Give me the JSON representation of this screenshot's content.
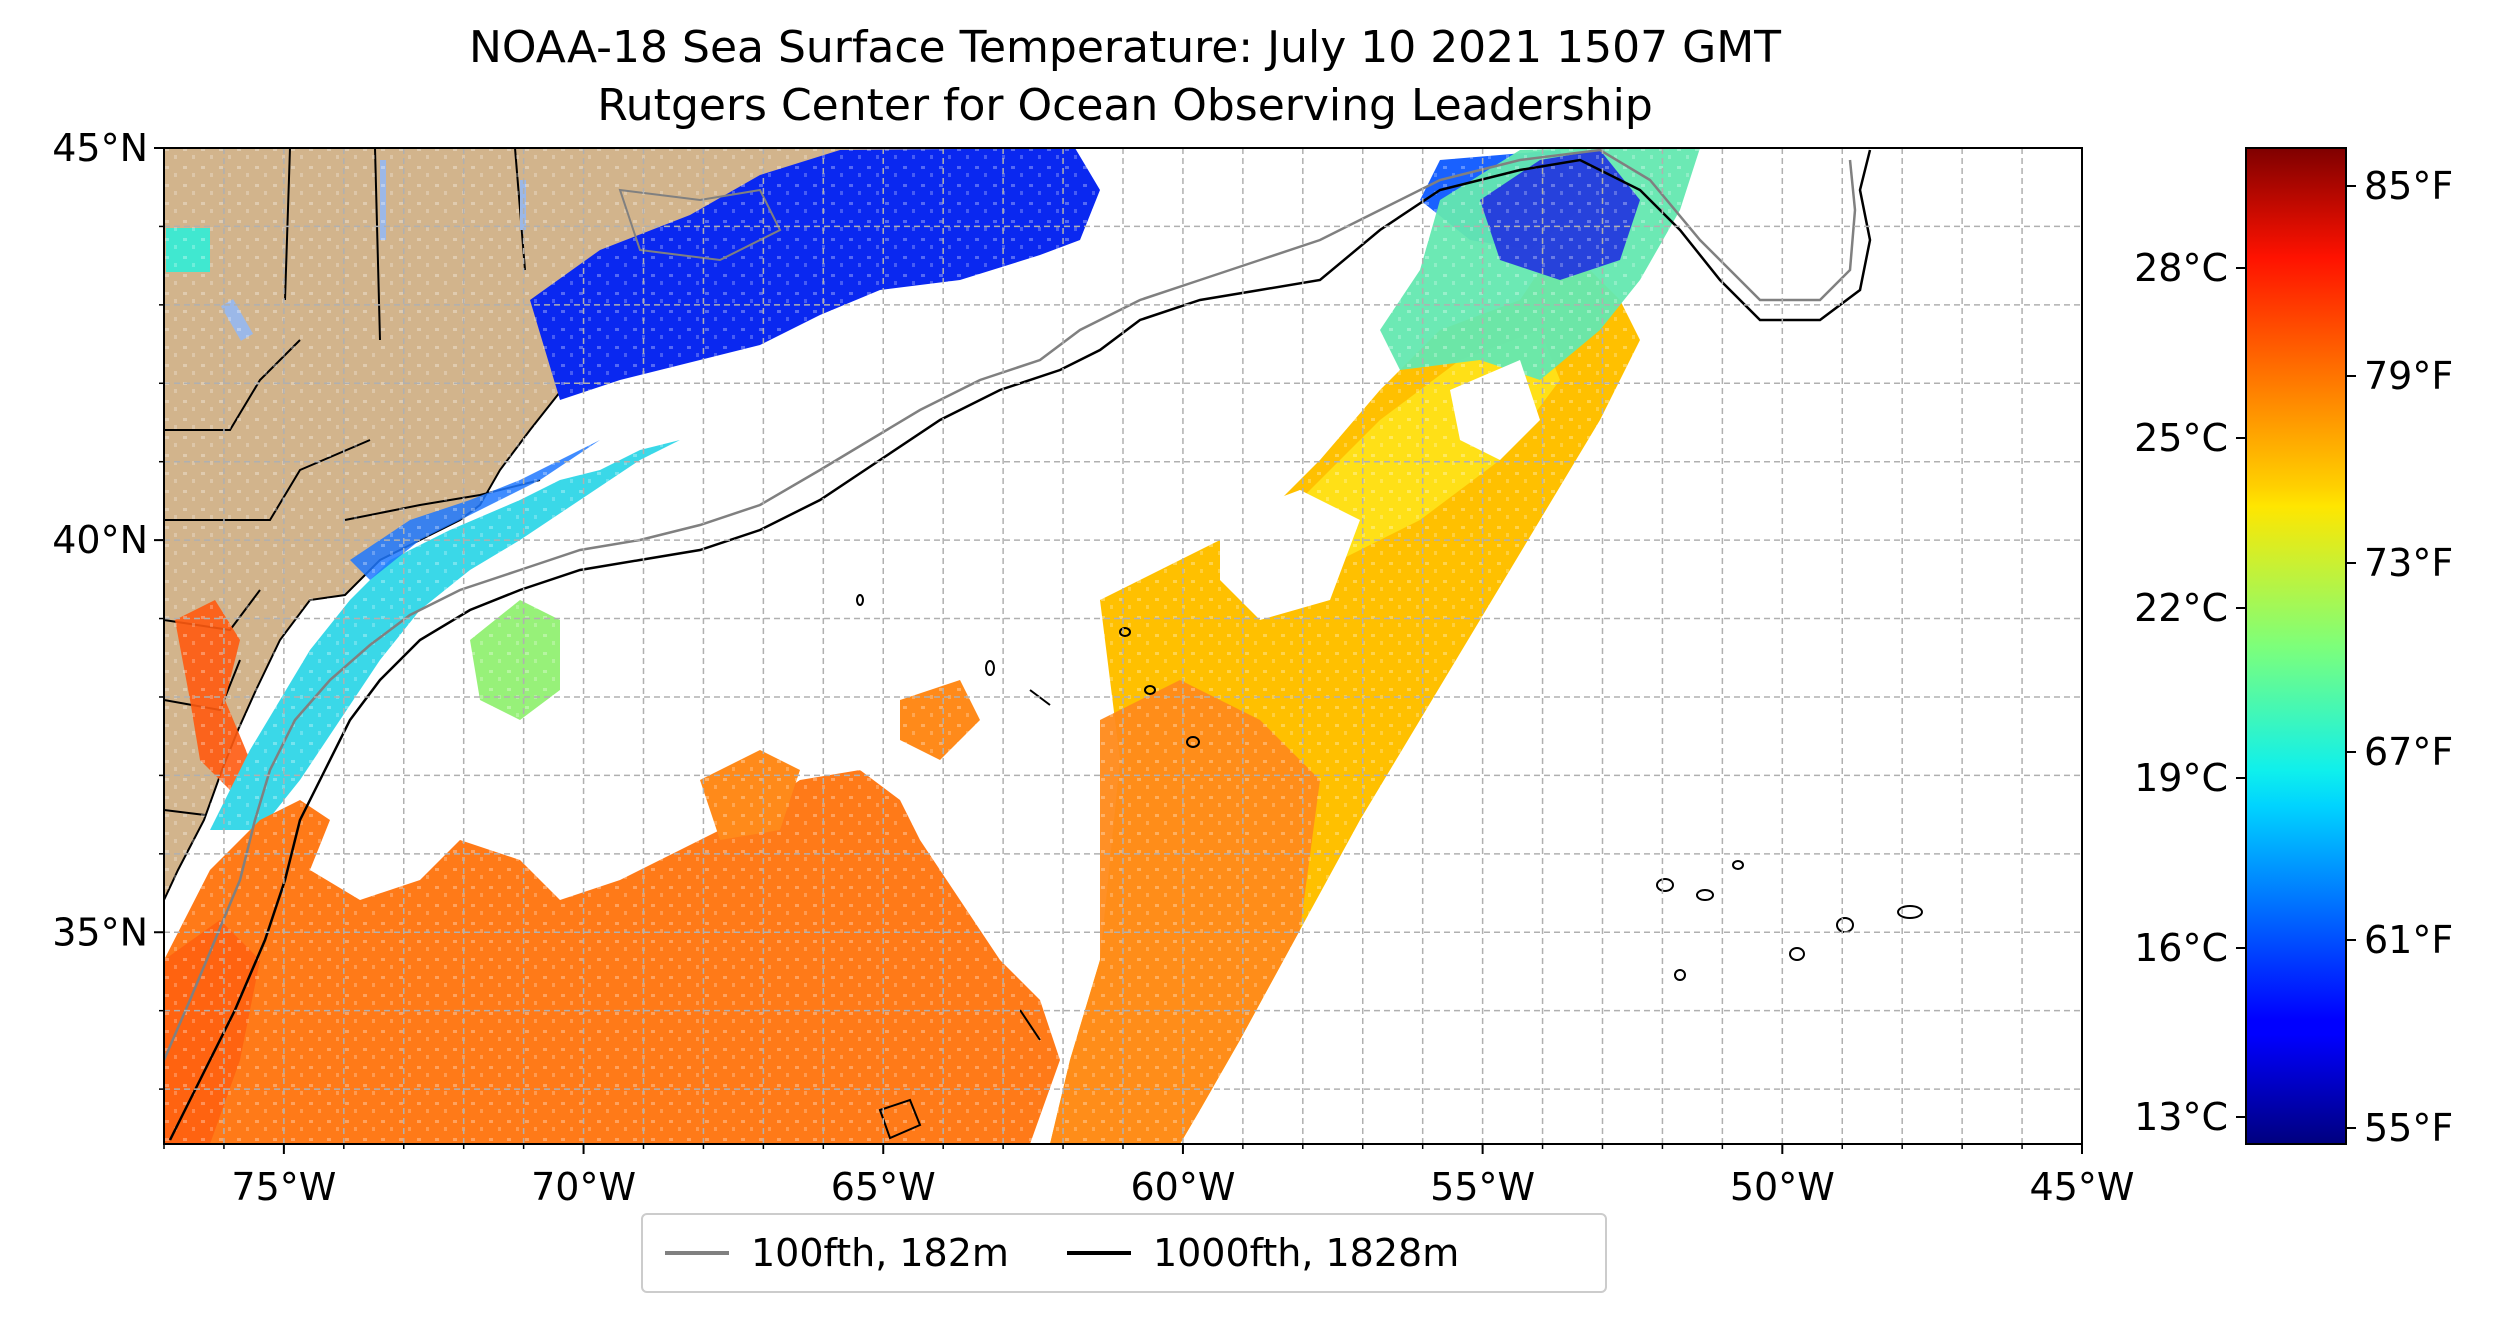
{
  "title": "NOAA-18 Sea Surface Temperature: July 10 2021 1507 GMT",
  "subtitle": "Rutgers Center for Ocean Observing Leadership",
  "map": {
    "lon_range": [
      -77,
      -45
    ],
    "lat_range": [
      32.3,
      45
    ],
    "lon_ticks": [
      "75°W",
      "70°W",
      "65°W",
      "60°W",
      "55°W",
      "50°W",
      "45°W"
    ],
    "lat_ticks": [
      "45°N",
      "40°N",
      "35°N"
    ],
    "gridlines": true,
    "land_color": "#d2b48c",
    "ocean_no_data_color": "#ffffff"
  },
  "colorbar": {
    "colormap": "jet",
    "celsius_ticks": [
      "28°C",
      "25°C",
      "22°C",
      "19°C",
      "16°C",
      "13°C"
    ],
    "fahrenheit_ticks": [
      "85°F",
      "79°F",
      "73°F",
      "67°F",
      "61°F",
      "55°F"
    ]
  },
  "legend": {
    "placement": "bottom-center",
    "items": [
      {
        "label": "100fth, 182m",
        "color": "#808080"
      },
      {
        "label": "1000fth, 1828m",
        "color": "#000000"
      }
    ]
  }
}
